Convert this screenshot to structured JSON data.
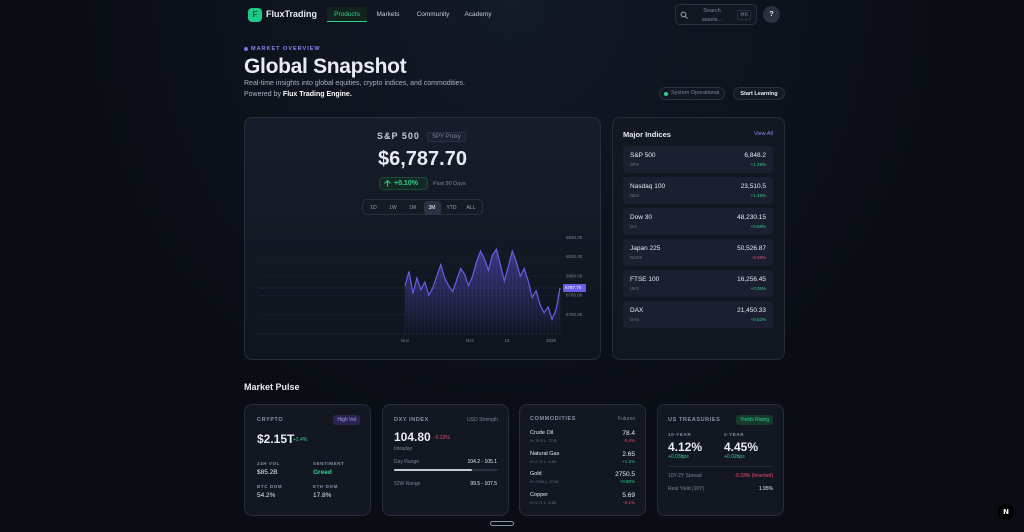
{
  "nav": {
    "logo_icon": "F",
    "brand": "FluxTrading",
    "links": [
      "Products",
      "Markets",
      "Community",
      "Academy"
    ],
    "active_link": "Products",
    "search_placeholder": "Search assets...",
    "search_shortcut": "⌘K",
    "avatar": "?"
  },
  "hero": {
    "eyebrow": "MARKET OVERVIEW",
    "title": "Global Snapshot",
    "subtitle": "Real-time insights into global equities, crypto indices, and commodities.",
    "powered_prefix": "Powered by",
    "powered_name": "Flux Trading Engine.",
    "status": "System Operational",
    "cta": "Start Learning"
  },
  "main_card": {
    "name": "S&P 500",
    "tag": "SPY Proxy",
    "price": "$6,787.70",
    "change": "+0.10%",
    "period": "Past 90 Days",
    "ranges": [
      "1D",
      "1W",
      "1M",
      "3M",
      "YTD",
      "ALL"
    ],
    "active_range": "3M"
  },
  "chart_data": {
    "type": "area",
    "color": "#6d5ce8",
    "values": [
      6790,
      6805,
      6782,
      6798,
      6786,
      6794,
      6780,
      6788,
      6800,
      6812,
      6798,
      6790,
      6784,
      6796,
      6808,
      6802,
      6790,
      6800,
      6815,
      6826,
      6818,
      6806,
      6822,
      6828,
      6812,
      6795,
      6810,
      6826,
      6815,
      6800,
      6808,
      6795,
      6778,
      6785,
      6770,
      6762,
      6768,
      6755,
      6765,
      6787.7
    ],
    "ylim": [
      6740,
      6850
    ],
    "yticks": [
      {
        "value": 6760,
        "label": "6760.00"
      },
      {
        "value": 6780,
        "label": "6780.00"
      },
      {
        "value": 6800,
        "label": "6800.00"
      },
      {
        "value": 6820,
        "label": "6820.00"
      },
      {
        "value": 6840,
        "label": "6840.00"
      }
    ],
    "price_marker": {
      "value": 6787.7,
      "label": "6787.70"
    },
    "x_labels": [
      "Nov",
      "Dec",
      "15",
      "2026"
    ]
  },
  "indices": {
    "title": "Major Indices",
    "view_all": "View All",
    "rows": [
      {
        "name": "S&P 500",
        "symbol": "SPX",
        "price": "6,848.2",
        "change": "+1.29%"
      },
      {
        "name": "Nasdaq 100",
        "symbol": "NDX",
        "price": "23,510.5",
        "change": "+1.45%"
      },
      {
        "name": "Dow 30",
        "symbol": "DJI",
        "price": "48,230.15",
        "change": "+0.58%"
      },
      {
        "name": "Japan 225",
        "symbol": "NI225",
        "price": "50,526.87",
        "change": "-0.48%"
      },
      {
        "name": "FTSE 100",
        "symbol": "UKX",
        "price": "16,256.45",
        "change": "+0.35%"
      },
      {
        "name": "DAX",
        "symbol": "DAX",
        "price": "21,450.33",
        "change": "+0.62%"
      }
    ]
  },
  "pulse": {
    "title": "Market Pulse",
    "crypto": {
      "label": "CRYPTO",
      "tag": "High Vol",
      "value": "$2.15T",
      "change": "+2.4%",
      "vol_label": "24H VOL",
      "vol": "$85.2B",
      "sent_label": "SENTIMENT",
      "sent": "Greed",
      "btc_label": "BTC DOM",
      "btc": "54.2%",
      "eth_label": "ETH DOM",
      "eth": "17.8%"
    },
    "dxy": {
      "label": "DXY INDEX",
      "tag": "USD Strength",
      "value": "104.80",
      "change": "-0.22%",
      "sub": "Intraday",
      "day_label": "Day Range",
      "day": "104.2 - 105.1",
      "w52_label": "52W Range",
      "w52": "99.5 - 107.5"
    },
    "commodities": {
      "label": "COMMODITIES",
      "tag": "Futures",
      "rows": [
        {
          "name": "Crude Oil",
          "hl": "H: 79.5 L: 77.8",
          "price": "78.4",
          "change": "-0.4%"
        },
        {
          "name": "Natural Gas",
          "hl": "H: 2.71 L: 2.63",
          "price": "2.65",
          "change": "+1.2%"
        },
        {
          "name": "Gold",
          "hl": "H: 2760 L: 2740",
          "price": "2750.5",
          "change": "+0.80%"
        },
        {
          "name": "Copper",
          "hl": "H: 5.71 L: 5.65",
          "price": "5.69",
          "change": "-0.1%"
        }
      ]
    },
    "treasuries": {
      "label": "US TREASURIES",
      "tag": "Yields Rising",
      "y10_label": "10-YEAR",
      "y10": "4.12%",
      "y10_change": "+0.03bps",
      "y2_label": "2-YEAR",
      "y2": "4.45%",
      "y2_change": "+0.02bps",
      "spread_label": "10Y-2Y Spread",
      "spread": "-0.33% (Inverted)",
      "real_label": "Real Yield (10Y)",
      "real": "1.95%"
    }
  }
}
